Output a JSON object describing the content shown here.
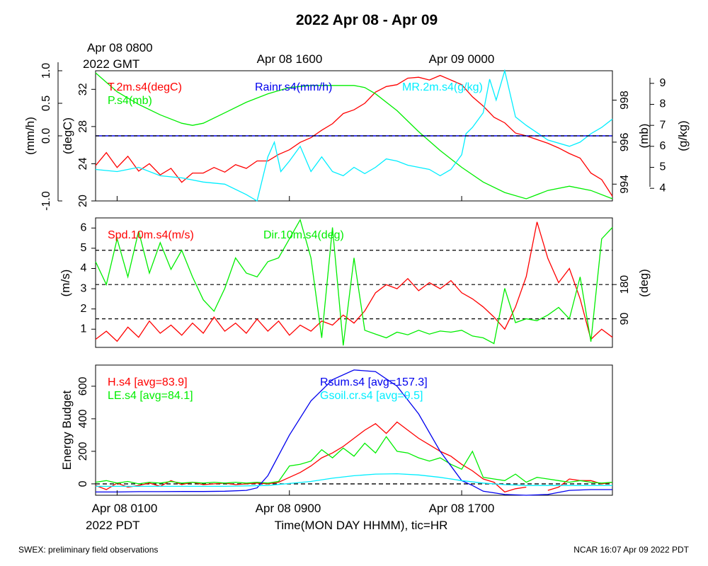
{
  "title": "2022 Apr 08 - Apr 09",
  "gmt_labels": {
    "start_line1": "Apr 08 0800",
    "start_line2": "2022 GMT",
    "mid": "Apr 08 1600",
    "end": "Apr 09 0000"
  },
  "x_axis": {
    "tick_1": "Apr 08 0100",
    "tick_2": "Apr 08 0900",
    "tick_3": "Apr 08 1700",
    "year_label": "2022 PDT",
    "xlabel": "Time(MON DAY HHMM), tic=HR"
  },
  "footer": {
    "left": "SWEX: preliminary field observations",
    "right": "NCAR 16:07 Apr 09 2022 PDT"
  },
  "colors": {
    "red": "#ff0000",
    "green": "#00ee00",
    "blue": "#0000ee",
    "cyan": "#00eeff",
    "black": "#000000"
  },
  "chart_data": [
    {
      "type": "line",
      "panel": "top",
      "x_range_hours": [
        0,
        24
      ],
      "axes": {
        "rain": {
          "label": "(mm/h)",
          "range": [
            -1.0,
            1.0
          ],
          "ticks": [
            "-1.0",
            "0.0",
            "0.5",
            "1.0"
          ]
        },
        "temp": {
          "label": "(degC)",
          "range": [
            20,
            34
          ],
          "ticks": [
            "20",
            "24",
            "28",
            "32"
          ]
        },
        "pres": {
          "label": "(mb)",
          "range": [
            993.2,
            999.4
          ],
          "ticks": [
            "994",
            "996",
            "998"
          ]
        },
        "mr": {
          "label": "(g/kg)",
          "range": [
            3.4,
            9.6
          ],
          "ticks": [
            "4",
            "5",
            "6",
            "7",
            "8",
            "9"
          ]
        }
      },
      "zero_line": 0.0,
      "series": [
        {
          "name": "T.2m.s4(degC)",
          "color": "red",
          "axis": "temp",
          "x": [
            0,
            0.5,
            1,
            1.5,
            2,
            2.5,
            3,
            3.5,
            4,
            4.5,
            5,
            5.5,
            6,
            6.5,
            7,
            7.5,
            8,
            8.5,
            9,
            9.5,
            10,
            10.5,
            11,
            11.5,
            12,
            12.5,
            13,
            13.5,
            14,
            14.5,
            15,
            15.5,
            16,
            16.5,
            17,
            17.5,
            18,
            18.5,
            19,
            19.5,
            20,
            20.5,
            21,
            21.5,
            22,
            22.5,
            23,
            23.5,
            24
          ],
          "y": [
            23.8,
            25.2,
            23.6,
            24.8,
            23.2,
            24.0,
            22.8,
            23.5,
            22.0,
            23.0,
            23.0,
            23.6,
            23.1,
            23.9,
            23.5,
            24.3,
            24.3,
            25.0,
            25.5,
            26.3,
            26.8,
            27.6,
            28.3,
            29.4,
            29.8,
            30.5,
            31.7,
            32.3,
            32.5,
            33.2,
            33.3,
            33.0,
            33.5,
            33.0,
            32.5,
            31.2,
            30.2,
            29.0,
            28.4,
            27.3,
            27.0,
            26.6,
            26.2,
            25.7,
            25.1,
            24.6,
            23.0,
            22.3,
            20.5
          ]
        },
        {
          "name": "P.s4(mb)",
          "color": "green",
          "axis": "pres",
          "x": [
            0,
            1,
            2,
            3,
            4,
            4.5,
            5,
            6,
            7,
            8,
            9,
            10,
            11,
            12,
            12.5,
            13,
            14,
            15,
            16,
            17,
            18,
            19,
            20,
            21,
            22,
            23,
            24
          ],
          "y": [
            999.3,
            998.4,
            997.8,
            997.3,
            996.9,
            996.8,
            996.9,
            997.4,
            997.9,
            998.3,
            998.6,
            998.7,
            998.7,
            998.7,
            998.6,
            998.3,
            997.5,
            996.5,
            995.6,
            994.8,
            994.1,
            993.6,
            993.3,
            993.7,
            993.9,
            993.7,
            993.3
          ]
        },
        {
          "name": "MR.2m.s4(g/kg)",
          "color": "cyan",
          "axis": "mr",
          "x": [
            0,
            1,
            2,
            3,
            4,
            5,
            6,
            7,
            7.5,
            8,
            8.3,
            8.6,
            9,
            9.5,
            10,
            10.5,
            11,
            11.5,
            12,
            12.5,
            13,
            13.5,
            14,
            14.5,
            15,
            15.5,
            16,
            16.5,
            17,
            17.2,
            17.5,
            18,
            18.3,
            18.6,
            19,
            19.5,
            20,
            21,
            22,
            22.5,
            23,
            23.5,
            24
          ],
          "y": [
            4.9,
            4.8,
            5.0,
            4.6,
            4.5,
            4.3,
            4.2,
            3.7,
            3.4,
            5.5,
            6.2,
            4.8,
            5.3,
            6.0,
            4.8,
            5.5,
            4.8,
            4.6,
            5.0,
            4.7,
            5.0,
            5.4,
            5.3,
            5.1,
            5.0,
            4.9,
            4.6,
            4.9,
            5.6,
            6.6,
            6.9,
            7.6,
            9.2,
            8.2,
            9.6,
            7.4,
            7.0,
            6.3,
            6.0,
            6.2,
            6.6,
            6.9,
            7.3
          ]
        },
        {
          "name": "Rainr.s4(mm/h)",
          "color": "blue",
          "axis": "rain",
          "x": [
            0,
            24
          ],
          "y": [
            0.0,
            0.0
          ]
        }
      ]
    },
    {
      "type": "line",
      "panel": "middle",
      "x_range_hours": [
        0,
        24
      ],
      "axes": {
        "spd": {
          "label": "(m/s)",
          "range": [
            0.1,
            6.5
          ],
          "ticks": [
            "1",
            "2",
            "3",
            "4",
            "5",
            "6"
          ]
        },
        "dir": {
          "label": "(deg)",
          "range": [
            15,
            355
          ],
          "ticks": [
            "90",
            "180"
          ]
        }
      },
      "reference_lines_deg": [
        90,
        180,
        270
      ],
      "series": [
        {
          "name": "Spd.10m.s4(m/s)",
          "color": "red",
          "axis": "spd",
          "x": [
            0,
            0.5,
            1,
            1.5,
            2,
            2.5,
            3,
            3.5,
            4,
            4.5,
            5,
            5.5,
            6,
            6.5,
            7,
            7.5,
            8,
            8.5,
            9,
            9.5,
            10,
            10.5,
            11,
            11.5,
            12,
            12.5,
            13,
            13.5,
            14,
            14.5,
            15,
            15.5,
            16,
            16.5,
            17,
            17.5,
            18,
            18.5,
            19,
            19.5,
            20,
            20.5,
            21,
            21.5,
            22,
            22.5,
            23,
            23.5,
            24
          ],
          "y": [
            0.5,
            0.9,
            0.4,
            1.1,
            0.6,
            1.4,
            0.8,
            1.2,
            0.7,
            1.3,
            0.8,
            1.6,
            0.9,
            1.3,
            0.8,
            1.5,
            0.9,
            1.4,
            0.7,
            1.2,
            0.9,
            1.4,
            1.2,
            1.7,
            1.3,
            1.9,
            2.8,
            3.2,
            3.0,
            3.5,
            2.9,
            3.3,
            3.0,
            3.4,
            2.8,
            2.5,
            2.1,
            1.6,
            1.0,
            2.1,
            3.6,
            6.3,
            4.5,
            3.3,
            4.0,
            2.5,
            0.5,
            1.0,
            0.6
          ]
        },
        {
          "name": "Dir.10m.s4(deg)",
          "color": "green",
          "axis": "dir",
          "x": [
            0,
            0.5,
            1,
            1.5,
            2,
            2.5,
            3,
            3.5,
            4,
            4.5,
            5,
            5.5,
            6,
            6.5,
            7,
            7.5,
            8,
            8.5,
            9,
            9.5,
            10,
            10.5,
            11,
            11.5,
            12,
            12.5,
            13,
            13.5,
            14,
            14.5,
            15,
            15.5,
            16,
            16.5,
            17,
            17.5,
            18,
            18.5,
            19,
            19.5,
            20,
            20.5,
            21,
            21.5,
            22,
            22.5,
            23,
            23.5,
            24
          ],
          "y": [
            240,
            180,
            300,
            200,
            320,
            210,
            290,
            220,
            270,
            200,
            140,
            110,
            170,
            250,
            210,
            200,
            240,
            250,
            300,
            350,
            250,
            40,
            330,
            20,
            250,
            60,
            50,
            40,
            55,
            48,
            60,
            50,
            58,
            55,
            60,
            45,
            40,
            25,
            170,
            80,
            90,
            85,
            100,
            120,
            90,
            200,
            30,
            300,
            330
          ]
        }
      ]
    },
    {
      "type": "line",
      "panel": "bottom",
      "x_range_hours": [
        0,
        24
      ],
      "axes": {
        "energy": {
          "label": "Energy Budget",
          "range": [
            -70,
            730
          ],
          "ticks": [
            "0",
            "200",
            "400",
            "600"
          ]
        }
      },
      "zero_line": 0,
      "series": [
        {
          "name": "H.s4 [avg=83.9]",
          "color": "red",
          "axis": "energy",
          "x": [
            0,
            0.5,
            1,
            1.5,
            2,
            2.5,
            3,
            3.5,
            4,
            4.5,
            5,
            5.5,
            6,
            6.5,
            7,
            7.5,
            8,
            8.5,
            9,
            9.5,
            10,
            10.5,
            11,
            11.5,
            12,
            12.5,
            13,
            13.5,
            14,
            14.5,
            15,
            15.5,
            16,
            16.5,
            17,
            17.5,
            18,
            18.5,
            19,
            19.5,
            20,
            20.5,
            21,
            21.5,
            22,
            22.5,
            23,
            23.5,
            24
          ],
          "y": [
            -10,
            -35,
            5,
            -20,
            -10,
            5,
            -15,
            20,
            -5,
            10,
            -5,
            0,
            5,
            -5,
            0,
            5,
            0,
            10,
            40,
            70,
            110,
            160,
            190,
            230,
            280,
            330,
            370,
            310,
            380,
            330,
            280,
            240,
            200,
            170,
            120,
            80,
            30,
            10,
            -50,
            -30,
            -20,
            null,
            -40,
            -20,
            30,
            20,
            20,
            0,
            10
          ]
        },
        {
          "name": "LE.s4 [avg=84.1]",
          "color": "green",
          "axis": "energy",
          "x": [
            0,
            0.5,
            1,
            1.5,
            2,
            2.5,
            3,
            3.5,
            4,
            4.5,
            5,
            5.5,
            6,
            6.5,
            7,
            7.5,
            8,
            8.5,
            9,
            9.5,
            10,
            10.5,
            11,
            11.5,
            12,
            12.5,
            13,
            13.5,
            14,
            14.5,
            15,
            15.5,
            16,
            16.5,
            17,
            17.5,
            18,
            18.5,
            19,
            19.5,
            20,
            20.5,
            21,
            21.5,
            22,
            22.5,
            23,
            23.5,
            24
          ],
          "y": [
            10,
            20,
            5,
            15,
            0,
            10,
            5,
            15,
            5,
            10,
            5,
            10,
            5,
            10,
            5,
            10,
            5,
            15,
            110,
            120,
            140,
            210,
            160,
            220,
            170,
            250,
            190,
            290,
            200,
            190,
            160,
            140,
            160,
            120,
            90,
            200,
            40,
            30,
            20,
            60,
            10,
            40,
            30,
            20,
            10,
            20,
            10,
            5,
            10
          ]
        },
        {
          "name": "Rsum.s4 [avg=157.3]",
          "color": "blue",
          "axis": "energy",
          "x": [
            0,
            1,
            2,
            3,
            4,
            5,
            6,
            7,
            7.5,
            8,
            9,
            10,
            11,
            12,
            13,
            14,
            15,
            16,
            17,
            17.5,
            18,
            19,
            20,
            21,
            22,
            23,
            24
          ],
          "y": [
            -50,
            -50,
            -48,
            -48,
            -47,
            -47,
            -45,
            -40,
            -25,
            50,
            300,
            510,
            640,
            700,
            690,
            600,
            430,
            200,
            20,
            -10,
            -45,
            -65,
            -70,
            -65,
            -40,
            -35,
            -35
          ]
        },
        {
          "name": "Gsoil.cr.s4 [avg=9.5]",
          "color": "cyan",
          "axis": "energy",
          "x": [
            0,
            2,
            4,
            6,
            8,
            10,
            11,
            12,
            13,
            14,
            15,
            16,
            17,
            18,
            19,
            20,
            22,
            24
          ],
          "y": [
            -15,
            -15,
            -15,
            -15,
            -10,
            15,
            35,
            50,
            60,
            62,
            55,
            40,
            20,
            5,
            -5,
            -10,
            -10,
            -10
          ]
        }
      ]
    }
  ]
}
